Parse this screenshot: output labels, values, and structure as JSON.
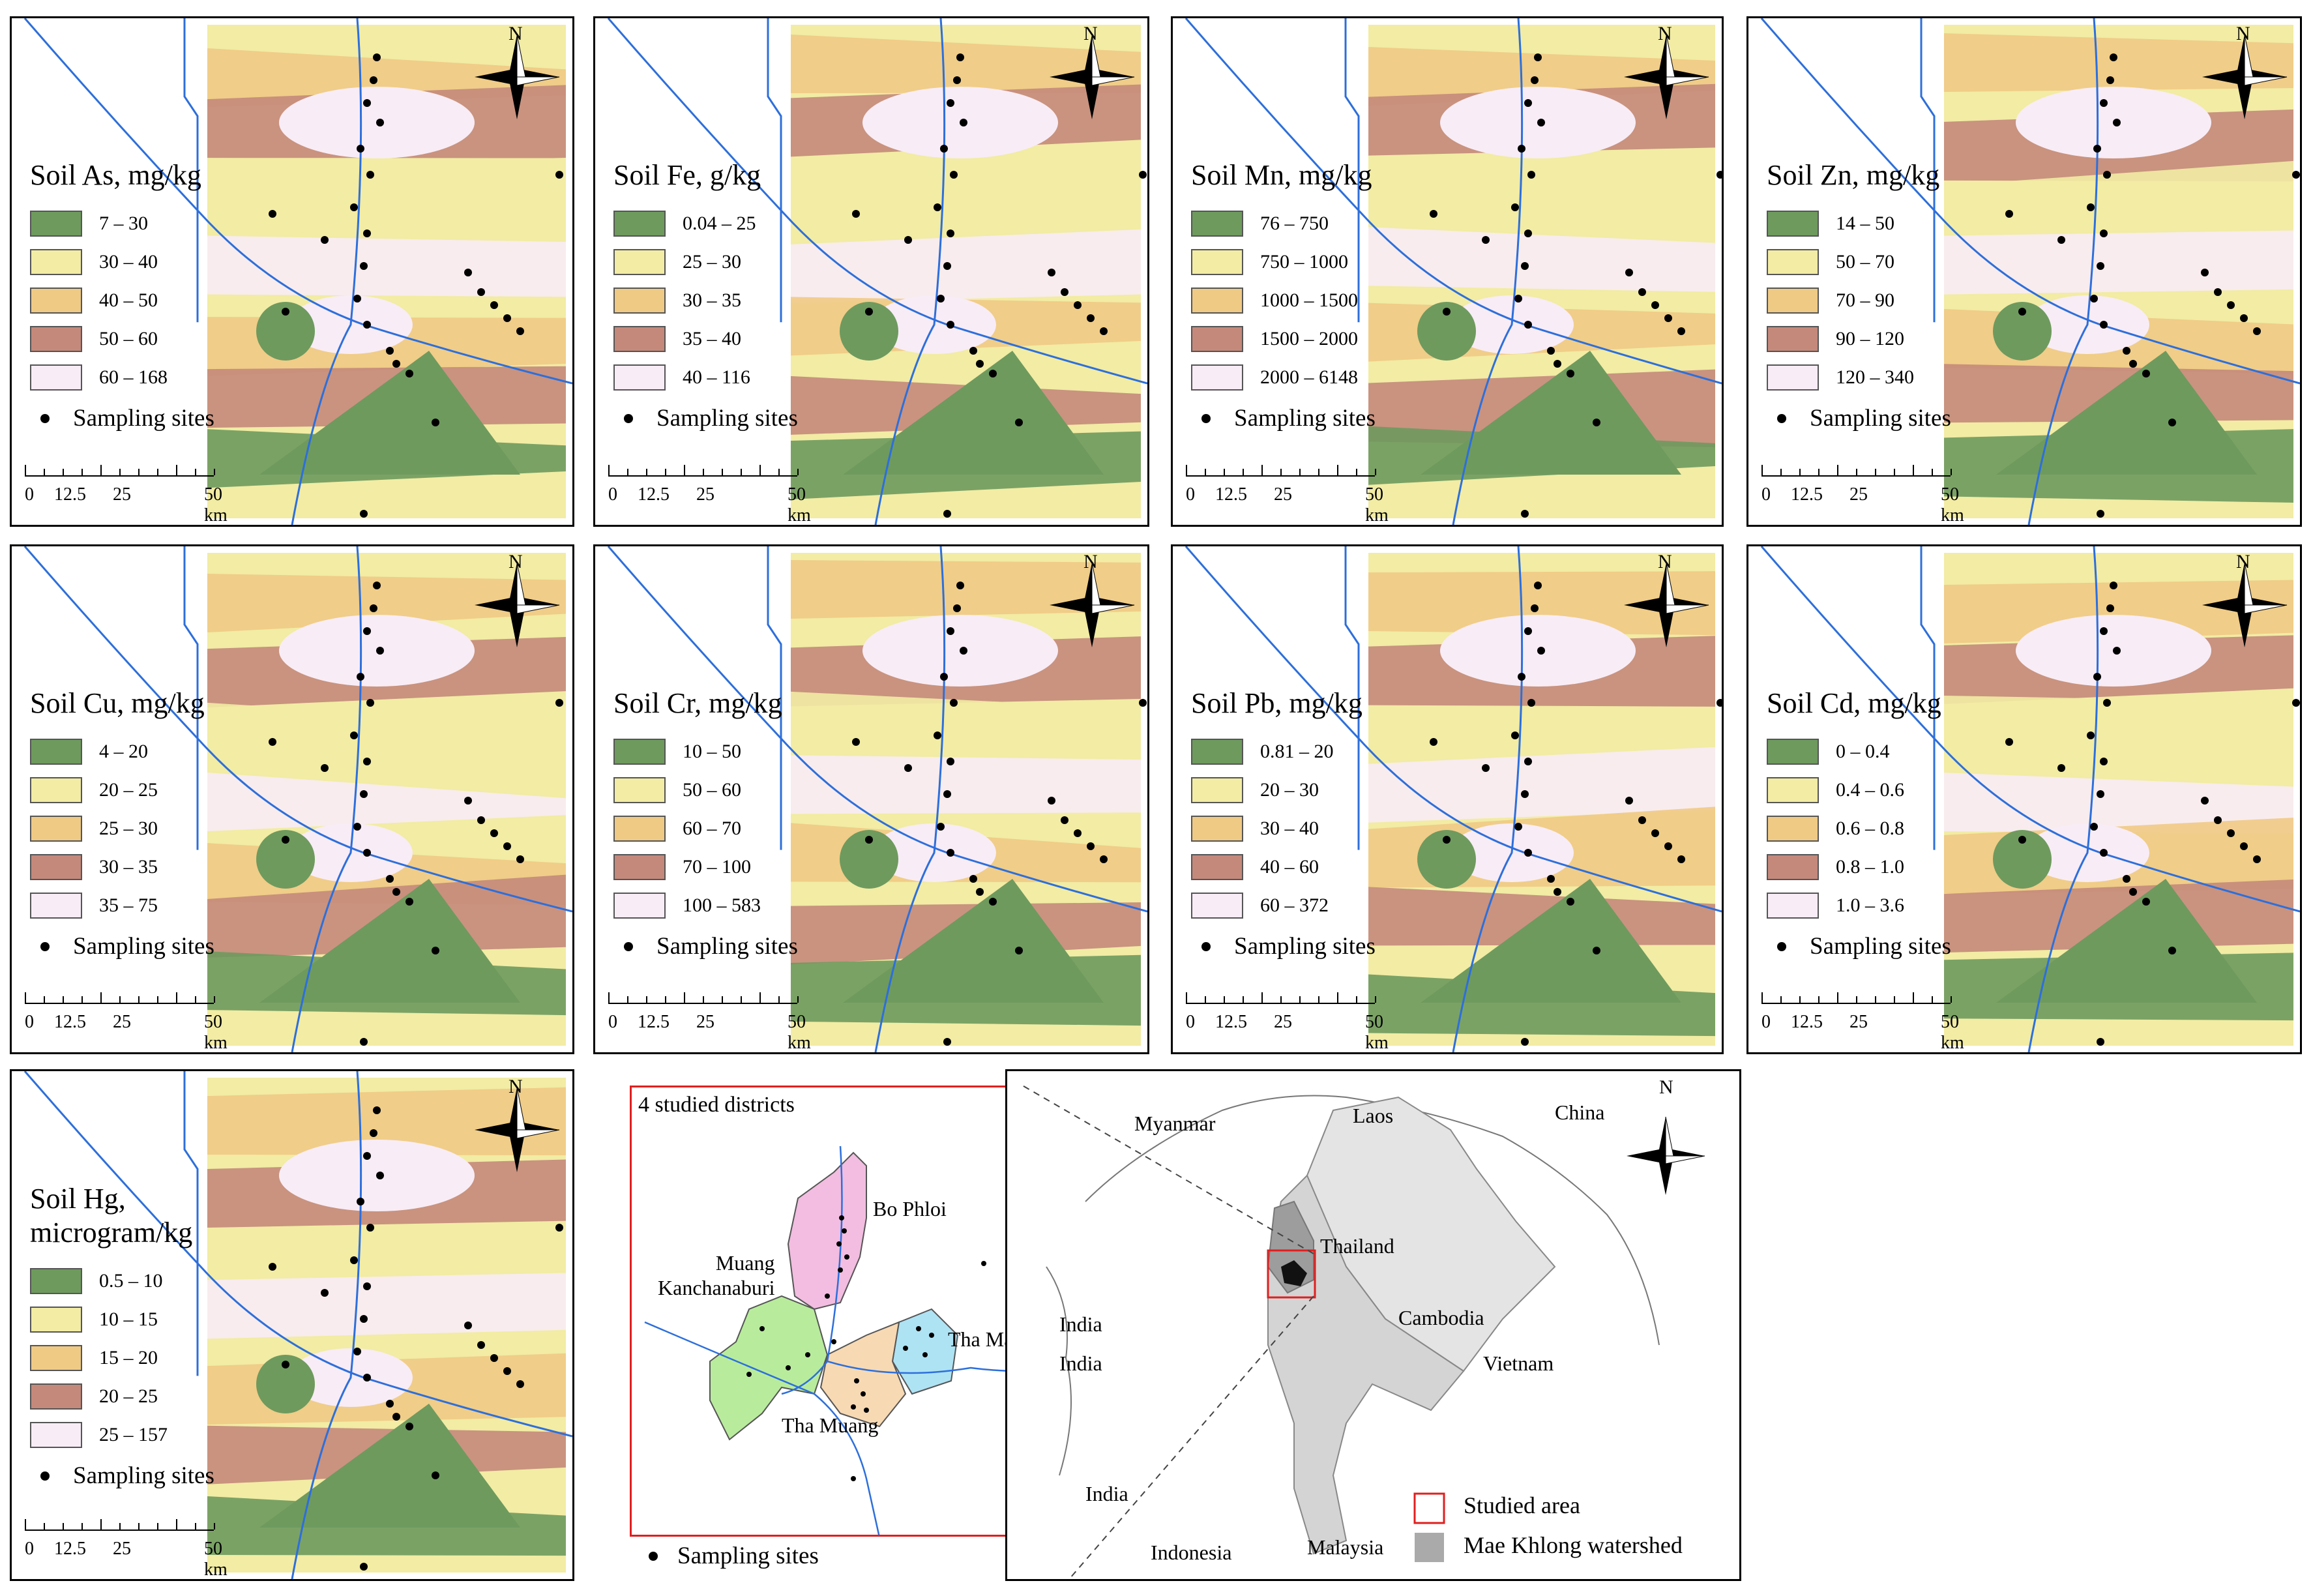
{
  "colors": {
    "c1": "#6e9a5e",
    "c2": "#f2eca4",
    "c3": "#efca85",
    "c4": "#c4897b",
    "c5": "#f8ecf6",
    "river": "#2d6fdb",
    "red": "#e01f1f",
    "mk": "#aaaaaa"
  },
  "panels": [
    {
      "id": "as",
      "title": "Soil As, mg/kg",
      "classes": [
        "7 – 30",
        "30 – 40",
        "40 – 50",
        "50 – 60",
        "60 – 168"
      ]
    },
    {
      "id": "fe",
      "title": "Soil Fe, g/kg",
      "classes": [
        "0.04 – 25",
        "25 – 30",
        "30 – 35",
        "35 – 40",
        "40 – 116"
      ]
    },
    {
      "id": "mn",
      "title": "Soil Mn, mg/kg",
      "classes": [
        "76 – 750",
        "750 – 1000",
        "1000 – 1500",
        "1500 – 2000",
        "2000 – 6148"
      ]
    },
    {
      "id": "zn",
      "title": "Soil Zn, mg/kg",
      "classes": [
        "14 – 50",
        "50 – 70",
        "70 – 90",
        "90 – 120",
        "120 – 340"
      ]
    },
    {
      "id": "cu",
      "title": "Soil Cu, mg/kg",
      "classes": [
        "4 – 20",
        "20 – 25",
        "25 – 30",
        "30 – 35",
        "35 – 75"
      ]
    },
    {
      "id": "cr",
      "title": "Soil Cr, mg/kg",
      "classes": [
        "10 – 50",
        "50 – 60",
        "60 – 70",
        "70 – 100",
        "100 – 583"
      ]
    },
    {
      "id": "pb",
      "title": "Soil Pb, mg/kg",
      "classes": [
        "0.81 – 20",
        "20 – 30",
        "30 – 40",
        "40 – 60",
        "60 – 372"
      ]
    },
    {
      "id": "cd",
      "title": "Soil Cd, mg/kg",
      "classes": [
        "0 – 0.4",
        "0.4 – 0.6",
        "0.6 – 0.8",
        "0.8 – 1.0",
        "1.0 – 3.6"
      ]
    },
    {
      "id": "hg",
      "title": "Soil Hg,\nmicrogram/kg",
      "classes": [
        "0.5 – 10",
        "10 – 15",
        "15 – 20",
        "20 – 25",
        "25 – 157"
      ]
    }
  ],
  "common": {
    "sites": "Sampling sites",
    "north": "N",
    "scale": [
      "0",
      "12.5",
      "25",
      "50 km"
    ]
  },
  "districts": {
    "title": "4 studied districts",
    "names": [
      "Bo Phloi",
      "Muang\nKanchanaburi",
      "Tha Maka",
      "Tha Muang"
    ],
    "sites": "Sampling sites"
  },
  "region": {
    "countries": [
      "Myanmar",
      "Laos",
      "China",
      "Thailand",
      "Cambodia",
      "Vietnam",
      "India",
      "India",
      "India",
      "Indonesia",
      "Malaysia"
    ],
    "legend": [
      "Studied area",
      "Mae Khlong watershed"
    ]
  }
}
